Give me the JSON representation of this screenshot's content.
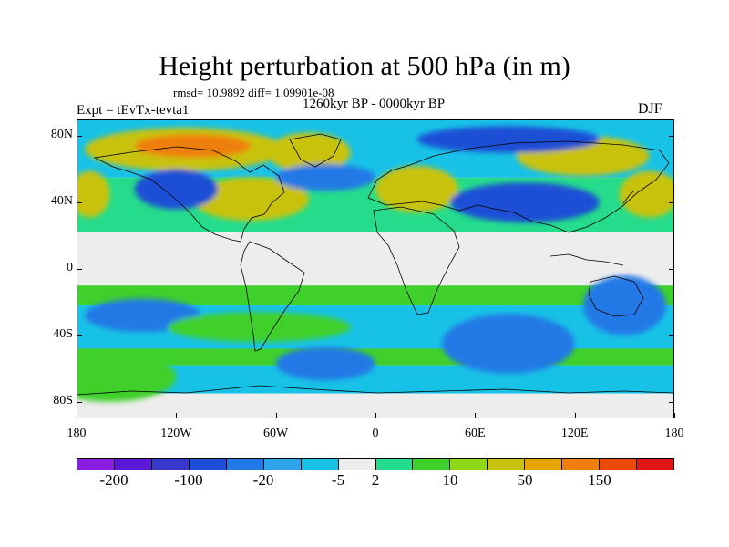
{
  "figure": {
    "title": "Height perturbation at 500 hPa (in m)",
    "stats": "rmsd= 10.9892 diff= 1.09901e-08",
    "period": "1260kyr BP - 0000kyr BP",
    "experiment": "Expt = tEvTx-tevta1",
    "season": "DJF"
  },
  "axes": {
    "lat_labels": [
      "80N",
      "40N",
      "0",
      "40S",
      "80S"
    ],
    "lat_values": [
      80,
      40,
      0,
      -40,
      -80
    ],
    "lon_labels": [
      "180",
      "120W",
      "60W",
      "0",
      "60E",
      "120E",
      "180"
    ],
    "lon_values": [
      -180,
      -120,
      -60,
      0,
      60,
      120,
      180
    ]
  },
  "colorbar": {
    "colors": [
      "#8a1de2",
      "#5b19d7",
      "#3838cc",
      "#1a4fd6",
      "#2079e6",
      "#2fa3ec",
      "#18c2e6",
      "#ededed",
      "#25dc8c",
      "#3fd02c",
      "#8fd616",
      "#c8c20c",
      "#e6a505",
      "#ef7f0b",
      "#eb4a0a",
      "#e01515"
    ],
    "labels": [
      "-200",
      "-100",
      "-20",
      "-5",
      "2",
      "10",
      "50",
      "150"
    ],
    "label_after_cell": [
      1,
      3,
      5,
      7,
      8,
      10,
      12,
      14
    ]
  },
  "map_regions": [
    {
      "name": "arctic-canada-high",
      "lon": -115,
      "lat": 72,
      "rlon": 60,
      "rlat": 13,
      "level": "50"
    },
    {
      "name": "arctic-canada-high-core",
      "lon": -110,
      "lat": 74,
      "rlon": 35,
      "rlat": 7,
      "level": "150"
    },
    {
      "name": "greenland-high",
      "lon": -40,
      "lat": 70,
      "rlon": 25,
      "rlat": 12,
      "level": "50"
    },
    {
      "name": "atlantic-high",
      "lon": -75,
      "lat": 42,
      "rlon": 35,
      "rlat": 13,
      "level": "50"
    },
    {
      "name": "europe-high",
      "lon": 25,
      "lat": 48,
      "rlon": 25,
      "rlat": 14,
      "level": "50"
    },
    {
      "name": "siberia-high",
      "lon": 125,
      "lat": 68,
      "rlon": 40,
      "rlat": 12,
      "level": "50"
    },
    {
      "name": "pacific-high",
      "lon": 165,
      "lat": 45,
      "rlon": 18,
      "rlat": 14,
      "level": "50"
    },
    {
      "name": "pacific-high-west",
      "lon": -172,
      "lat": 45,
      "rlon": 12,
      "rlat": 14,
      "level": "50"
    },
    {
      "name": "north-america-low",
      "lon": -120,
      "lat": 48,
      "rlon": 25,
      "rlat": 12,
      "level": "-100"
    },
    {
      "name": "north-atlantic-low",
      "lon": -30,
      "lat": 55,
      "rlon": 30,
      "rlat": 8,
      "level": "-20"
    },
    {
      "name": "russia-low",
      "lon": 80,
      "lat": 78,
      "rlon": 55,
      "rlat": 8,
      "level": "-100"
    },
    {
      "name": "central-asia-low",
      "lon": 90,
      "lat": 40,
      "rlon": 45,
      "rlat": 12,
      "level": "-100"
    },
    {
      "name": "south-pacific-low",
      "lon": -140,
      "lat": -28,
      "rlon": 35,
      "rlat": 10,
      "level": "-20"
    },
    {
      "name": "south-atlantic-low",
      "lon": -30,
      "lat": -57,
      "rlon": 30,
      "rlat": 10,
      "level": "-20"
    },
    {
      "name": "indian-ocean-low",
      "lon": 80,
      "lat": -45,
      "rlon": 40,
      "rlat": 18,
      "level": "-20"
    },
    {
      "name": "australia-low",
      "lon": 150,
      "lat": -22,
      "rlon": 25,
      "rlat": 18,
      "level": "-20"
    },
    {
      "name": "southern-ocean-high",
      "lon": -70,
      "lat": -35,
      "rlon": 55,
      "rlat": 9,
      "level": "10"
    },
    {
      "name": "antarctic-high",
      "lon": -160,
      "lat": -65,
      "rlon": 40,
      "rlat": 15,
      "level": "10"
    }
  ],
  "coastline_labels": {
    "north-america": "North America outline",
    "south-america": "South America outline",
    "africa": "Africa outline",
    "eurasia": "Eurasia outline",
    "australia": "Australia outline",
    "antarctica": "Antarctica outline"
  }
}
